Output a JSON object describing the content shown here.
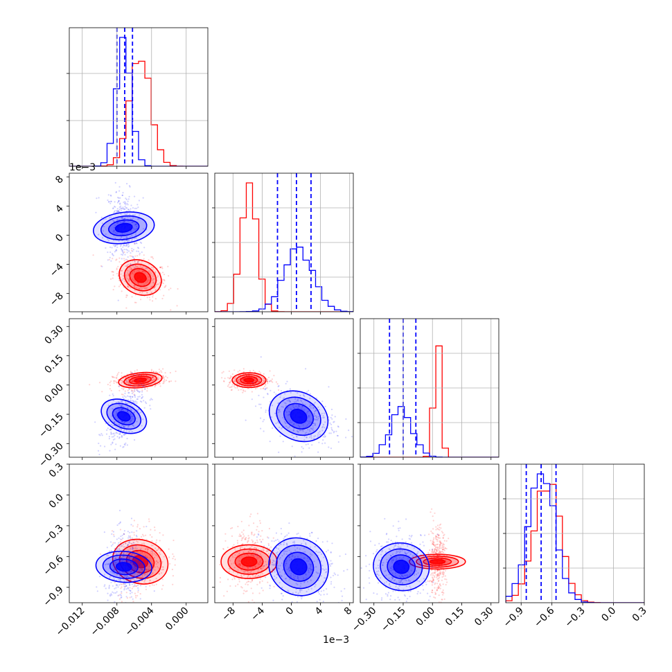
{
  "chart_data": {
    "type": "corner",
    "parameters": 4,
    "colors": {
      "series_a": "#0000ff",
      "series_b": "#ff0000",
      "grid": "#b0b0b0"
    },
    "series": [
      {
        "color": "#0000ff"
      },
      {
        "color": "#ff0000"
      }
    ],
    "ranges": [
      [
        -0.0135,
        0.0025
      ],
      [
        -0.0105,
        0.0085
      ],
      [
        -0.37,
        0.34
      ],
      [
        -1.05,
        0.3
      ]
    ],
    "offset_labels": {
      "y1": "1e−3",
      "x1": "1e−3"
    },
    "bottom_ticks": [
      {
        "values": [
          -0.012,
          -0.008,
          -0.004,
          0.0
        ],
        "labels": [
          "−0.012",
          "−0.008",
          "−0.004",
          "0.000"
        ]
      },
      {
        "values": [
          -0.008,
          -0.004,
          0.0,
          0.004,
          0.008
        ],
        "labels": [
          "−8",
          "−4",
          "0",
          "4",
          "8"
        ]
      },
      {
        "values": [
          -0.3,
          -0.15,
          0.0,
          0.15,
          0.3
        ],
        "labels": [
          "−0.30",
          "−0.15",
          "0.00",
          "0.15",
          "0.30"
        ]
      },
      {
        "values": [
          -0.9,
          -0.6,
          -0.3,
          0.0,
          0.3
        ],
        "labels": [
          "−0.9",
          "−0.6",
          "−0.3",
          "0.0",
          "0.3"
        ]
      }
    ],
    "left_ticks": [
      null,
      {
        "values": [
          -0.008,
          -0.004,
          0.0,
          0.004,
          0.008
        ],
        "labels": [
          "−8",
          "−4",
          "0",
          "4",
          "8"
        ]
      },
      {
        "values": [
          -0.3,
          -0.15,
          0.0,
          0.15,
          0.3
        ],
        "labels": [
          "−0.30",
          "−0.15",
          "0.00",
          "0.15",
          "0.30"
        ]
      },
      {
        "values": [
          -0.9,
          -0.6,
          -0.3,
          0.0,
          0.3
        ],
        "labels": [
          "−0.9",
          "−0.6",
          "−0.3",
          "0.0",
          "0.3"
        ]
      }
    ],
    "posteriors": [
      {
        "mean": [
          -0.0072,
          0.001,
          -0.16,
          -0.7
        ],
        "sd": [
          0.00085,
          0.002,
          0.058,
          0.13
        ],
        "rho": [
          [
            1,
            0,
            0,
            0
          ],
          [
            -0.2,
            1,
            0,
            0
          ],
          [
            0.5,
            -0.35,
            1,
            0
          ],
          [
            0.1,
            -0.25,
            0.05,
            1
          ]
        ]
      },
      {
        "mean": [
          -0.0053,
          -0.0058,
          0.025,
          -0.65
        ],
        "sd": [
          0.0012,
          0.0011,
          0.018,
          0.13
        ],
        "rho": [
          [
            1,
            0,
            0,
            0
          ],
          [
            -0.3,
            1,
            0,
            0
          ],
          [
            0.3,
            0,
            1,
            0
          ],
          [
            0.15,
            0,
            0,
            1
          ]
        ]
      }
    ],
    "quantiles_series": 0,
    "quantiles": [
      [
        -0.008,
        -0.0071,
        -0.0062
      ],
      [
        -0.0019,
        0.0007,
        0.0027
      ],
      [
        -0.22,
        -0.15,
        -0.085
      ],
      [
        -0.85,
        -0.705,
        -0.56
      ]
    ],
    "diag_yticks": [
      [
        0.33,
        0.67
      ],
      [
        0.25,
        0.5,
        0.75
      ],
      [
        0.25,
        0.5,
        0.75
      ],
      [
        0.25,
        0.5,
        0.75
      ]
    ],
    "diag_hist": [
      {
        "bins": 22,
        "series_peaks": [
          1.0,
          0.85
        ]
      },
      {
        "bins": 22,
        "series_peaks": [
          0.48,
          1.0
        ]
      },
      {
        "bins": 22,
        "series_peaks": [
          0.36,
          1.0
        ]
      },
      {
        "bins": 22,
        "series_peaks": [
          1.0,
          0.95
        ]
      }
    ],
    "grid": true,
    "legend": "none"
  }
}
